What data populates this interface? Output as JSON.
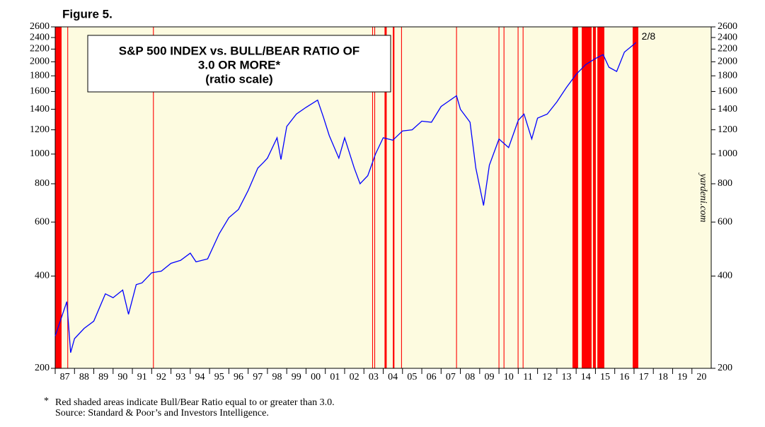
{
  "figure_label": "Figure 5.",
  "chart_data": {
    "type": "line",
    "title": [
      "S&P 500 INDEX vs. BULL/BEAR RATIO OF",
      "3.0 OR MORE*"
    ],
    "subtitle": "(ratio scale)",
    "end_label": "2/8",
    "watermark": "yardeni.com",
    "log_scale": true,
    "ylim": [
      200,
      2600
    ],
    "yticks": [
      200,
      400,
      600,
      800,
      1000,
      1200,
      1400,
      1600,
      1800,
      2000,
      2200,
      2400,
      2600
    ],
    "xlim": [
      1987,
      2021
    ],
    "xticks": [
      {
        "value": 1987,
        "label": "87"
      },
      {
        "value": 1988,
        "label": "88"
      },
      {
        "value": 1989,
        "label": "89"
      },
      {
        "value": 1990,
        "label": "90"
      },
      {
        "value": 1991,
        "label": "91"
      },
      {
        "value": 1992,
        "label": "92"
      },
      {
        "value": 1993,
        "label": "93"
      },
      {
        "value": 1994,
        "label": "94"
      },
      {
        "value": 1995,
        "label": "95"
      },
      {
        "value": 1996,
        "label": "96"
      },
      {
        "value": 1997,
        "label": "97"
      },
      {
        "value": 1998,
        "label": "98"
      },
      {
        "value": 1999,
        "label": "99"
      },
      {
        "value": 2000,
        "label": "00"
      },
      {
        "value": 2001,
        "label": "01"
      },
      {
        "value": 2002,
        "label": "02"
      },
      {
        "value": 2003,
        "label": "03"
      },
      {
        "value": 2004,
        "label": "04"
      },
      {
        "value": 2005,
        "label": "05"
      },
      {
        "value": 2006,
        "label": "06"
      },
      {
        "value": 2007,
        "label": "07"
      },
      {
        "value": 2008,
        "label": "08"
      },
      {
        "value": 2009,
        "label": "09"
      },
      {
        "value": 2010,
        "label": "10"
      },
      {
        "value": 2011,
        "label": "11"
      },
      {
        "value": 2012,
        "label": "12"
      },
      {
        "value": 2013,
        "label": "13"
      },
      {
        "value": 2014,
        "label": "14"
      },
      {
        "value": 2015,
        "label": "15"
      },
      {
        "value": 2016,
        "label": "16"
      },
      {
        "value": 2017,
        "label": "17"
      },
      {
        "value": 2018,
        "label": "18"
      },
      {
        "value": 2019,
        "label": "19"
      },
      {
        "value": 2020,
        "label": "20"
      }
    ],
    "background": "#fdfbe0",
    "shade_color": "#ff0000",
    "shaded_regions": [
      [
        1987.0,
        1987.33
      ],
      [
        1987.63,
        1987.67
      ],
      [
        1992.07,
        1992.11
      ],
      [
        2003.43,
        2003.47
      ],
      [
        2003.54,
        2003.58
      ],
      [
        2004.07,
        2004.18
      ],
      [
        2004.5,
        2004.58
      ],
      [
        2004.93,
        2004.97
      ],
      [
        2007.78,
        2007.82
      ],
      [
        2009.98,
        2010.02
      ],
      [
        2010.24,
        2010.28
      ],
      [
        2010.97,
        2011.01
      ],
      [
        2011.23,
        2011.27
      ],
      [
        2013.81,
        2014.1
      ],
      [
        2014.29,
        2014.8
      ],
      [
        2014.87,
        2015.02
      ],
      [
        2015.1,
        2015.46
      ],
      [
        2016.93,
        2017.22
      ]
    ],
    "series": [
      {
        "name": "S&P 500",
        "color": "#0000ff",
        "x": [
          1987.0,
          1987.3,
          1987.6,
          1987.8,
          1988.0,
          1988.5,
          1989.0,
          1989.6,
          1990.0,
          1990.5,
          1990.8,
          1991.2,
          1991.5,
          1992.0,
          1992.5,
          1993.0,
          1993.5,
          1994.0,
          1994.3,
          1994.9,
          1995.5,
          1996.0,
          1996.5,
          1997.0,
          1997.5,
          1997.8,
          1998.0,
          1998.5,
          1998.7,
          1999.0,
          1999.5,
          2000.0,
          2000.6,
          2000.9,
          2001.2,
          2001.7,
          2002.0,
          2002.5,
          2002.8,
          2003.2,
          2003.6,
          2004.0,
          2004.5,
          2005.0,
          2005.5,
          2006.0,
          2006.5,
          2007.0,
          2007.8,
          2008.0,
          2008.5,
          2008.8,
          2009.2,
          2009.5,
          2010.0,
          2010.5,
          2011.0,
          2011.3,
          2011.7,
          2012.0,
          2012.5,
          2013.0,
          2013.5,
          2014.0,
          2014.5,
          2015.0,
          2015.4,
          2015.7,
          2016.1,
          2016.5,
          2017.1
        ],
        "values": [
          255,
          290,
          330,
          225,
          250,
          270,
          285,
          350,
          340,
          360,
          300,
          375,
          380,
          410,
          415,
          440,
          450,
          475,
          445,
          455,
          550,
          620,
          660,
          760,
          900,
          940,
          970,
          1130,
          960,
          1230,
          1350,
          1420,
          1500,
          1320,
          1150,
          970,
          1130,
          900,
          800,
          850,
          1000,
          1130,
          1110,
          1190,
          1200,
          1280,
          1270,
          1430,
          1550,
          1400,
          1270,
          900,
          680,
          920,
          1120,
          1050,
          1290,
          1350,
          1120,
          1310,
          1350,
          1480,
          1650,
          1820,
          1960,
          2050,
          2110,
          1920,
          1860,
          2150,
          2310
        ]
      }
    ],
    "footnote_marker": "*",
    "footnote": "Red shaded areas indicate Bull/Bear Ratio equal to or greater than 3.0.",
    "source": "Source: Standard & Poor’s and Investors Intelligence."
  }
}
